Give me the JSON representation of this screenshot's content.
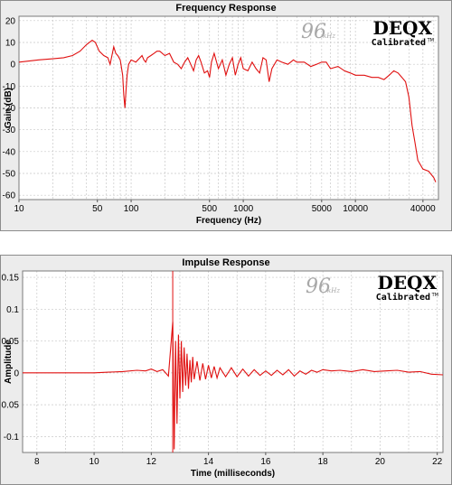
{
  "colors": {
    "trace": "#e01010",
    "grid": "#c8c8c8",
    "plot_bg": "#ffffff",
    "panel_bg": "#ececec"
  },
  "logo": {
    "rate": "96",
    "unit": "kHz",
    "brand": "DEQX",
    "sub": "Calibrated",
    "tm": "TM"
  },
  "chart_data": [
    {
      "type": "line",
      "title": "Frequency Response",
      "xlabel": "Frequency (Hz)",
      "ylabel": "Gain (dB)",
      "xscale": "log",
      "xlim": [
        10,
        55000
      ],
      "ylim": [
        -62,
        22
      ],
      "grid": true,
      "xticks": [
        10,
        50,
        100,
        500,
        1000,
        5000,
        10000,
        40000
      ],
      "xtick_labels": [
        "10",
        "50",
        "100",
        "500",
        "1000",
        "5000",
        "10000",
        "40000"
      ],
      "yticks": [
        20,
        10,
        0,
        -10,
        -20,
        -30,
        -40,
        -50,
        -60
      ],
      "ytick_labels": [
        "20",
        "10",
        "0",
        "-10",
        "-20",
        "-30",
        "-40",
        "-50",
        "-60"
      ],
      "series": [
        {
          "x": [
            10,
            15,
            20,
            25,
            30,
            35,
            40,
            45,
            48,
            52,
            57,
            62,
            65,
            68,
            70,
            73,
            76,
            80,
            84,
            86,
            88,
            90,
            92,
            95,
            100,
            110,
            120,
            125,
            130,
            135,
            140,
            150,
            160,
            170,
            180,
            200,
            220,
            240,
            260,
            280,
            300,
            320,
            340,
            360,
            380,
            400,
            420,
            450,
            480,
            500,
            520,
            550,
            600,
            650,
            700,
            750,
            800,
            850,
            900,
            950,
            1000,
            1100,
            1200,
            1300,
            1400,
            1500,
            1600,
            1700,
            1800,
            2000,
            2200,
            2500,
            2800,
            3000,
            3500,
            4000,
            4500,
            5000,
            5500,
            6000,
            7000,
            8000,
            9000,
            10000,
            12000,
            14000,
            16000,
            18000,
            20000,
            22000,
            24000,
            26000,
            28000,
            30000,
            32000,
            34000,
            36000,
            40000,
            45000,
            50000,
            52000
          ],
          "y": [
            1,
            2,
            2.5,
            3,
            4,
            6,
            9,
            11,
            10,
            6,
            4,
            3,
            0,
            5,
            8,
            5,
            4,
            2,
            -5,
            -14,
            -20,
            -12,
            -5,
            0,
            2,
            1,
            3,
            4,
            2,
            1,
            3,
            4,
            5,
            6,
            6,
            4,
            5,
            1,
            0,
            -2,
            1,
            3,
            0,
            -3,
            2,
            4,
            1,
            -4,
            -3,
            -6,
            1,
            5,
            -2,
            2,
            -5,
            0,
            3,
            -5,
            0,
            3,
            -2,
            -3,
            1,
            -2,
            -4,
            3,
            2,
            -8,
            -2,
            2,
            1,
            0,
            2,
            1,
            1,
            -1,
            0,
            1,
            1,
            -2,
            -1,
            -3,
            -4,
            -5,
            -5,
            -6,
            -6,
            -7,
            -5,
            -3,
            -4,
            -6,
            -8,
            -15,
            -28,
            -36,
            -44,
            -48,
            -49,
            -52,
            -54
          ]
        }
      ]
    },
    {
      "type": "line",
      "title": "Impulse Response",
      "xlabel": "Time (milliseconds)",
      "ylabel": "Amplitude",
      "xlim": [
        7.5,
        22.2
      ],
      "ylim": [
        -0.125,
        0.16
      ],
      "grid": true,
      "xticks": [
        8,
        10,
        12,
        14,
        16,
        18,
        20,
        22
      ],
      "xtick_labels": [
        "8",
        "10",
        "12",
        "14",
        "16",
        "18",
        "20",
        "22"
      ],
      "yticks": [
        0.15,
        0.1,
        0.05,
        0,
        -0.05,
        -0.1
      ],
      "ytick_labels": [
        "0.15",
        "0.1",
        "0.05",
        "0",
        "-0.05",
        "-0.1"
      ],
      "series": [
        {
          "x": [
            7.5,
            8,
            9,
            10,
            10.5,
            11,
            11.5,
            11.8,
            12,
            12.2,
            12.4,
            12.6,
            12.75,
            12.8,
            12.85,
            12.9,
            12.95,
            13.0,
            13.05,
            13.1,
            13.15,
            13.2,
            13.25,
            13.3,
            13.35,
            13.4,
            13.45,
            13.5,
            13.6,
            13.7,
            13.8,
            13.9,
            14.0,
            14.1,
            14.2,
            14.3,
            14.4,
            14.6,
            14.8,
            15.0,
            15.2,
            15.4,
            15.6,
            15.8,
            16.0,
            16.2,
            16.4,
            16.6,
            16.8,
            17.0,
            17.2,
            17.4,
            17.6,
            17.8,
            18.0,
            18.3,
            18.6,
            19.0,
            19.4,
            19.8,
            20.2,
            20.6,
            21.0,
            21.4,
            21.8,
            22.2
          ],
          "y": [
            0,
            0,
            0,
            0,
            0.001,
            0.002,
            0.004,
            0.003,
            0.006,
            0.002,
            0.005,
            -0.005,
            0.08,
            -0.12,
            0.05,
            -0.08,
            0.06,
            -0.04,
            0.05,
            -0.03,
            0.04,
            -0.02,
            0.03,
            -0.025,
            0.02,
            -0.015,
            0.025,
            -0.01,
            0.018,
            -0.012,
            0.015,
            -0.01,
            0.012,
            -0.008,
            0.01,
            -0.008,
            0.008,
            -0.006,
            0.008,
            -0.006,
            0.006,
            -0.005,
            0.005,
            -0.004,
            0.003,
            -0.004,
            0.004,
            -0.003,
            0.005,
            -0.005,
            0.003,
            -0.002,
            0.004,
            0.001,
            0.005,
            0.003,
            0.004,
            0.002,
            0.005,
            0.002,
            0.003,
            0.004,
            0.001,
            0.002,
            -0.002,
            -0.003
          ]
        }
      ],
      "annotations": [
        {
          "type": "vertical-line",
          "x": 12.75
        }
      ]
    }
  ]
}
